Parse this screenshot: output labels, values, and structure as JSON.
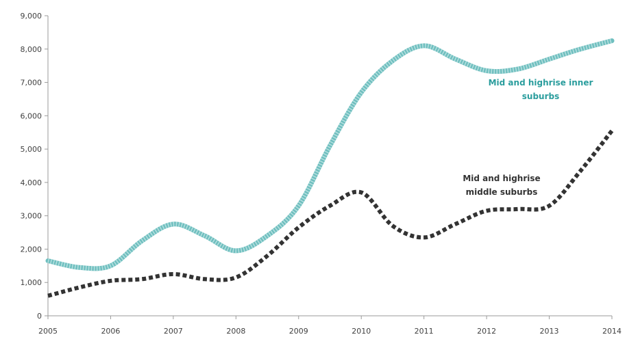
{
  "chart_data": {
    "type": "line",
    "title": "",
    "xlabel": "",
    "ylabel": "",
    "x": [
      2005,
      2006,
      2007,
      2008,
      2009,
      2010,
      2011,
      2012,
      2013,
      2014
    ],
    "xlim": [
      2005,
      2014
    ],
    "ylim": [
      0,
      9000
    ],
    "y_ticks": [
      "0",
      "1,000",
      "2,000",
      "3,000",
      "4,000",
      "5,000",
      "6,000",
      "7,000",
      "8,000",
      "9,000"
    ],
    "x_ticks": [
      "2005",
      "2006",
      "2007",
      "2008",
      "2009",
      "2010",
      "2011",
      "2012",
      "2013",
      "2014"
    ],
    "grid": false,
    "legend": "none",
    "series": [
      {
        "name": "Mid and highrise inner suburbs",
        "label_lines": [
          "Mid and highrise inner",
          "suburbs"
        ],
        "color": "#6fbfbf",
        "style": "solid-textured",
        "values": [
          [
            2005,
            1650
          ],
          [
            2005.5,
            1450
          ],
          [
            2006,
            1500
          ],
          [
            2006.5,
            2250
          ],
          [
            2007,
            2750
          ],
          [
            2007.5,
            2400
          ],
          [
            2008,
            1950
          ],
          [
            2008.5,
            2400
          ],
          [
            2009,
            3300
          ],
          [
            2009.5,
            5100
          ],
          [
            2010,
            6700
          ],
          [
            2010.5,
            7650
          ],
          [
            2011,
            8100
          ],
          [
            2011.5,
            7700
          ],
          [
            2012,
            7350
          ],
          [
            2012.5,
            7400
          ],
          [
            2013,
            7700
          ],
          [
            2013.5,
            8000
          ],
          [
            2014,
            8250
          ]
        ]
      },
      {
        "name": "Mid and highrise middle suburbs",
        "label_lines": [
          "Mid and highrise",
          "middle suburbs"
        ],
        "color": "#333333",
        "style": "dotted",
        "values": [
          [
            2005,
            600
          ],
          [
            2005.5,
            850
          ],
          [
            2006,
            1050
          ],
          [
            2006.5,
            1100
          ],
          [
            2007,
            1250
          ],
          [
            2007.5,
            1100
          ],
          [
            2008,
            1150
          ],
          [
            2008.5,
            1800
          ],
          [
            2009,
            2650
          ],
          [
            2009.5,
            3300
          ],
          [
            2010,
            3700
          ],
          [
            2010.5,
            2700
          ],
          [
            2011,
            2350
          ],
          [
            2011.5,
            2750
          ],
          [
            2012,
            3150
          ],
          [
            2012.5,
            3200
          ],
          [
            2013,
            3300
          ],
          [
            2013.5,
            4350
          ],
          [
            2014,
            5550
          ]
        ]
      }
    ]
  }
}
